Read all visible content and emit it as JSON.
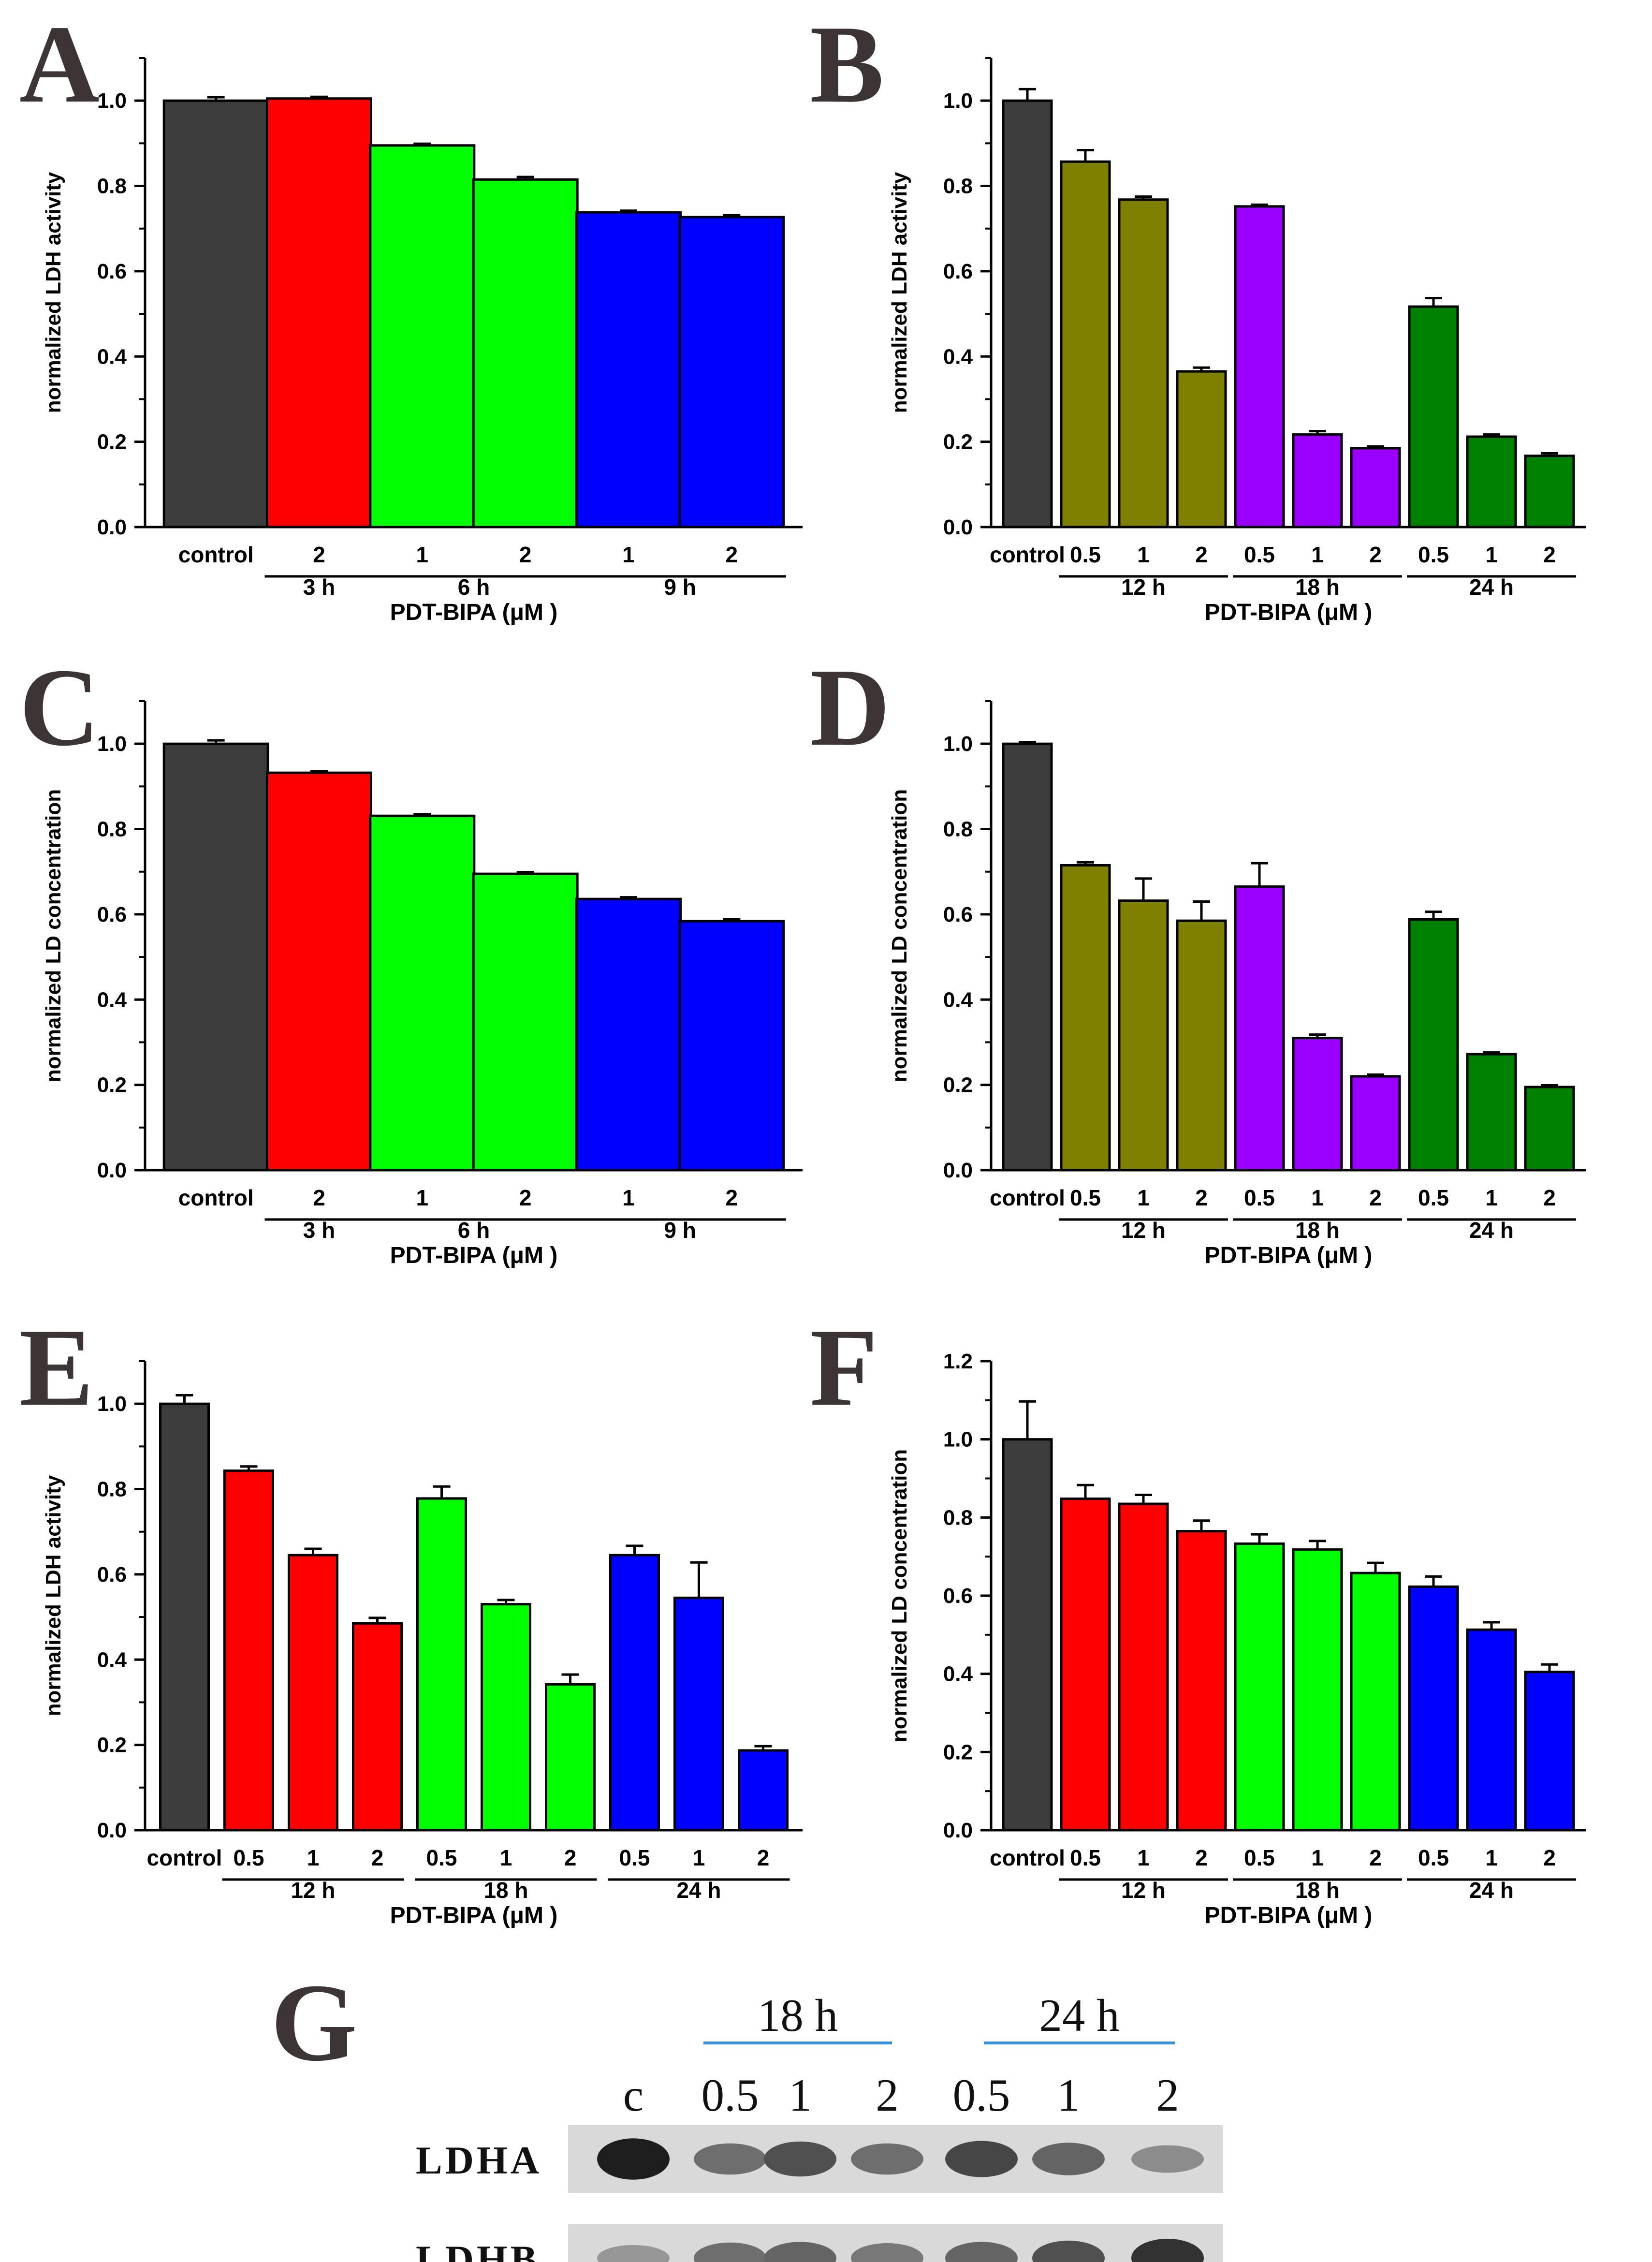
{
  "colors": {
    "dark": "#3c3c3c",
    "red": "#ff0000",
    "green": "#00ff00",
    "blue": "#0000ff",
    "olive": "#808000",
    "purple": "#9900ff",
    "darkgreen": "#008000",
    "axis": "#000000",
    "group_line": "#000000",
    "blot_bracket": "#3a8fd8"
  },
  "chart_data": [
    {
      "panel": "A",
      "type": "bar",
      "ylabel": "normalized LDH activity",
      "xlabel": "PDT-BIPA (μM )",
      "ylim": [
        0,
        1.1
      ],
      "yticks": [
        "0.0",
        "0.2",
        "0.4",
        "0.6",
        "0.8",
        "1.0"
      ],
      "grid": false,
      "categories": [
        "control",
        "2",
        "1",
        "2",
        "1",
        "2"
      ],
      "values": [
        1.0,
        1.005,
        0.895,
        0.815,
        0.738,
        0.727
      ],
      "errors": [
        0.008,
        0.004,
        0.004,
        0.006,
        0.004,
        0.005
      ],
      "bar_colors": [
        "dark",
        "red",
        "green",
        "green",
        "blue",
        "blue"
      ],
      "groups": [
        {
          "label": "3 h",
          "start": 1,
          "end": 1
        },
        {
          "label": "6 h",
          "start": 2,
          "end": 3
        },
        {
          "label": "9 h",
          "start": 4,
          "end": 5
        }
      ]
    },
    {
      "panel": "B",
      "type": "bar",
      "ylabel": "normalized LDH activity",
      "xlabel": "PDT-BIPA (μM )",
      "ylim": [
        0,
        1.1
      ],
      "yticks": [
        "0.0",
        "0.2",
        "0.4",
        "0.6",
        "0.8",
        "1.0"
      ],
      "grid": false,
      "categories": [
        "control",
        "0.5",
        "1",
        "2",
        "0.5",
        "1",
        "2",
        "0.5",
        "1",
        "2"
      ],
      "values": [
        1.0,
        0.857,
        0.768,
        0.365,
        0.752,
        0.217,
        0.185,
        0.517,
        0.212,
        0.167
      ],
      "errors": [
        0.027,
        0.027,
        0.007,
        0.009,
        0.004,
        0.008,
        0.004,
        0.02,
        0.005,
        0.006
      ],
      "bar_colors": [
        "dark",
        "olive",
        "olive",
        "olive",
        "purple",
        "purple",
        "purple",
        "darkgreen",
        "darkgreen",
        "darkgreen"
      ],
      "groups": [
        {
          "label": "12 h",
          "start": 1,
          "end": 3
        },
        {
          "label": "18 h",
          "start": 4,
          "end": 6
        },
        {
          "label": "24 h",
          "start": 7,
          "end": 9
        }
      ]
    },
    {
      "panel": "C",
      "type": "bar",
      "ylabel": "normalized LD concentration",
      "xlabel": "PDT-BIPA (μM )",
      "ylim": [
        0,
        1.1
      ],
      "yticks": [
        "0.0",
        "0.2",
        "0.4",
        "0.6",
        "0.8",
        "1.0"
      ],
      "grid": false,
      "categories": [
        "control",
        "2",
        "1",
        "2",
        "1",
        "2"
      ],
      "values": [
        1.0,
        0.932,
        0.831,
        0.695,
        0.636,
        0.584
      ],
      "errors": [
        0.008,
        0.004,
        0.004,
        0.004,
        0.004,
        0.004
      ],
      "bar_colors": [
        "dark",
        "red",
        "green",
        "green",
        "blue",
        "blue"
      ],
      "groups": [
        {
          "label": "3 h",
          "start": 1,
          "end": 1
        },
        {
          "label": "6 h",
          "start": 2,
          "end": 3
        },
        {
          "label": "9 h",
          "start": 4,
          "end": 5
        }
      ]
    },
    {
      "panel": "D",
      "type": "bar",
      "ylabel": "normalized LD concentration",
      "xlabel": "PDT-BIPA (μM )",
      "ylim": [
        0,
        1.1
      ],
      "yticks": [
        "0.0",
        "0.2",
        "0.4",
        "0.6",
        "0.8",
        "1.0"
      ],
      "grid": false,
      "categories": [
        "control",
        "0.5",
        "1",
        "2",
        "0.5",
        "1",
        "2",
        "0.5",
        "1",
        "2"
      ],
      "values": [
        1.0,
        0.715,
        0.632,
        0.585,
        0.665,
        0.31,
        0.22,
        0.588,
        0.272,
        0.195
      ],
      "errors": [
        0.004,
        0.007,
        0.052,
        0.045,
        0.055,
        0.008,
        0.004,
        0.018,
        0.004,
        0.004
      ],
      "bar_colors": [
        "dark",
        "olive",
        "olive",
        "olive",
        "purple",
        "purple",
        "purple",
        "darkgreen",
        "darkgreen",
        "darkgreen"
      ],
      "groups": [
        {
          "label": "12 h",
          "start": 1,
          "end": 3
        },
        {
          "label": "18 h",
          "start": 4,
          "end": 6
        },
        {
          "label": "24 h",
          "start": 7,
          "end": 9
        }
      ]
    },
    {
      "panel": "E",
      "type": "bar",
      "ylabel": "normalized LDH activity",
      "xlabel": "PDT-BIPA (μM )",
      "ylim": [
        0,
        1.1
      ],
      "yticks": [
        "0.0",
        "0.2",
        "0.4",
        "0.6",
        "0.8",
        "1.0"
      ],
      "grid": false,
      "categories": [
        "control",
        "0.5",
        "1",
        "2",
        "0.5",
        "1",
        "2",
        "0.5",
        "1",
        "2"
      ],
      "values": [
        1.0,
        0.843,
        0.645,
        0.485,
        0.778,
        0.53,
        0.342,
        0.645,
        0.545,
        0.187
      ],
      "errors": [
        0.02,
        0.01,
        0.015,
        0.013,
        0.028,
        0.01,
        0.023,
        0.022,
        0.083,
        0.01
      ],
      "bar_colors": [
        "dark",
        "red",
        "red",
        "red",
        "green",
        "green",
        "green",
        "blue",
        "blue",
        "blue"
      ],
      "groups": [
        {
          "label": "12 h",
          "start": 1,
          "end": 3
        },
        {
          "label": "18 h",
          "start": 4,
          "end": 6
        },
        {
          "label": "24 h",
          "start": 7,
          "end": 9
        }
      ]
    },
    {
      "panel": "F",
      "type": "bar",
      "ylabel": "normalized LD concentration",
      "xlabel": "PDT-BIPA (μM )",
      "ylim": [
        0,
        1.2
      ],
      "yticks": [
        "0.0",
        "0.2",
        "0.4",
        "0.6",
        "0.8",
        "1.0",
        "1.2"
      ],
      "grid": false,
      "categories": [
        "control",
        "0.5",
        "1",
        "2",
        "0.5",
        "1",
        "2",
        "0.5",
        "1",
        "2"
      ],
      "values": [
        1.0,
        0.848,
        0.835,
        0.765,
        0.733,
        0.718,
        0.658,
        0.623,
        0.513,
        0.405
      ],
      "errors": [
        0.097,
        0.035,
        0.023,
        0.027,
        0.024,
        0.022,
        0.026,
        0.026,
        0.019,
        0.019
      ],
      "bar_colors": [
        "dark",
        "red",
        "red",
        "red",
        "green",
        "green",
        "green",
        "blue",
        "blue",
        "blue"
      ],
      "groups": [
        {
          "label": "12 h",
          "start": 1,
          "end": 3
        },
        {
          "label": "18 h",
          "start": 4,
          "end": 6
        },
        {
          "label": "24 h",
          "start": 7,
          "end": 9
        }
      ]
    }
  ],
  "blot": {
    "panel": "G",
    "time_labels": [
      "18 h",
      "24 h"
    ],
    "lane_labels": [
      "c",
      "0.5",
      "1",
      "2",
      "0.5",
      "1",
      "2"
    ],
    "rows": [
      {
        "label": "LDHA",
        "intensities": [
          0.95,
          0.55,
          0.7,
          0.55,
          0.75,
          0.6,
          0.4
        ]
      },
      {
        "label": "LDHB",
        "intensities": [
          0.35,
          0.55,
          0.6,
          0.5,
          0.6,
          0.7,
          0.85
        ]
      }
    ]
  }
}
